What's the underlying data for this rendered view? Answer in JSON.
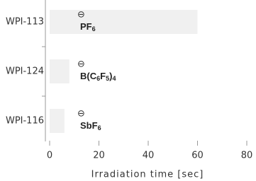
{
  "chart_data": {
    "type": "bar",
    "orientation": "horizontal",
    "categories": [
      "WPI-113",
      "WPI-124",
      "WPI-116"
    ],
    "values": [
      60,
      8,
      6
    ],
    "color": "#f0f0f0",
    "xlabel": "Irradiation time [sec]",
    "xlim": [
      0,
      80
    ],
    "xticks": [
      0,
      20,
      40,
      60,
      80
    ],
    "annotations": [
      {
        "charge": "⊖",
        "formula": [
          "PF",
          "6"
        ]
      },
      {
        "charge": "⊖",
        "formula": [
          "B(C",
          "6",
          "F",
          "5",
          ")",
          "4"
        ]
      },
      {
        "charge": "⊖",
        "formula": [
          "SbF",
          "6"
        ]
      }
    ]
  }
}
